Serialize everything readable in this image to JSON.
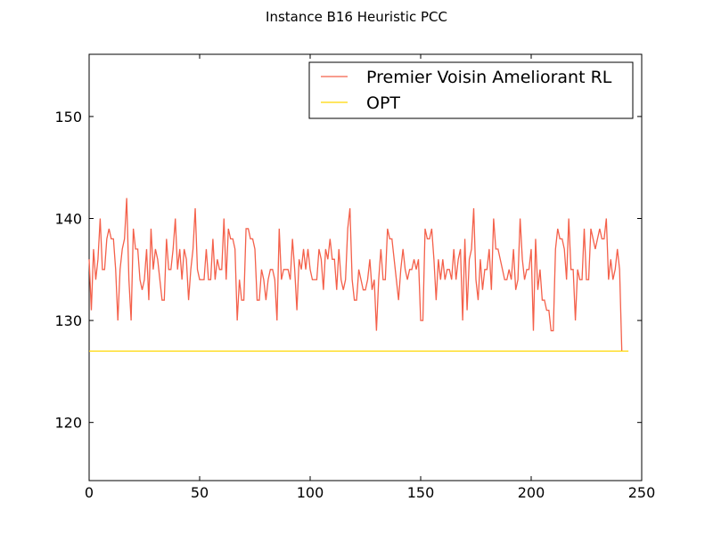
{
  "chart_data": {
    "type": "line",
    "title": "Instance B16 Heuristic PCC",
    "xlabel": "",
    "ylabel": "",
    "xlim": [
      0,
      250
    ],
    "ylim": [
      114.3,
      156.1
    ],
    "xticks": [
      0,
      50,
      100,
      150,
      200,
      250
    ],
    "yticks": [
      120,
      130,
      140,
      150
    ],
    "grid": false,
    "legend_position": "top-right",
    "series": [
      {
        "name": "Premier Voisin Ameliorant RL",
        "color": "#f4604a",
        "values": [
          136,
          131,
          137,
          134,
          136,
          140,
          135,
          135,
          138,
          139,
          138,
          138,
          135,
          130,
          135,
          137,
          138,
          142,
          134,
          130,
          139,
          137,
          137,
          134,
          133,
          134,
          137,
          132,
          139,
          135,
          137,
          136,
          134,
          132,
          132,
          138,
          135,
          135,
          137,
          140,
          135,
          137,
          134,
          137,
          136,
          132,
          135,
          137,
          141,
          135,
          134,
          134,
          134,
          137,
          134,
          134,
          138,
          134,
          136,
          135,
          135,
          140,
          134,
          139,
          138,
          138,
          137,
          130,
          134,
          132,
          132,
          139,
          139,
          138,
          138,
          137,
          132,
          132,
          135,
          134,
          132,
          134,
          135,
          135,
          134,
          130,
          139,
          134,
          135,
          135,
          135,
          134,
          138,
          135,
          131,
          136,
          135,
          137,
          135,
          137,
          135,
          134,
          134,
          134,
          137,
          136,
          133,
          137,
          136,
          138,
          136,
          136,
          133,
          137,
          134,
          133,
          134,
          139,
          141,
          134,
          132,
          132,
          135,
          134,
          133,
          133,
          134,
          136,
          133,
          134,
          129,
          134,
          137,
          134,
          134,
          139,
          138,
          138,
          136,
          134,
          132,
          135,
          137,
          135,
          134,
          135,
          135,
          136,
          135,
          136,
          130,
          130,
          139,
          138,
          138,
          139,
          136,
          132,
          136,
          134,
          136,
          134,
          135,
          135,
          134,
          137,
          134,
          136,
          137,
          130,
          138,
          131,
          136,
          137,
          141,
          134,
          132,
          136,
          133,
          135,
          135,
          137,
          133,
          140,
          137,
          137,
          136,
          135,
          134,
          134,
          135,
          134,
          137,
          133,
          134,
          140,
          136,
          134,
          135,
          135,
          137,
          129,
          138,
          133,
          135,
          132,
          132,
          131,
          131,
          129,
          129,
          137,
          139,
          138,
          138,
          137,
          134,
          140,
          135,
          135,
          130,
          135,
          134,
          134,
          139,
          134,
          134,
          139,
          138,
          137,
          138,
          139,
          138,
          138,
          140,
          134,
          136,
          134,
          135,
          137,
          135,
          127
        ]
      },
      {
        "name": "OPT",
        "color": "#ffd700",
        "x": [
          0,
          244
        ],
        "values": [
          127,
          127
        ]
      }
    ]
  }
}
